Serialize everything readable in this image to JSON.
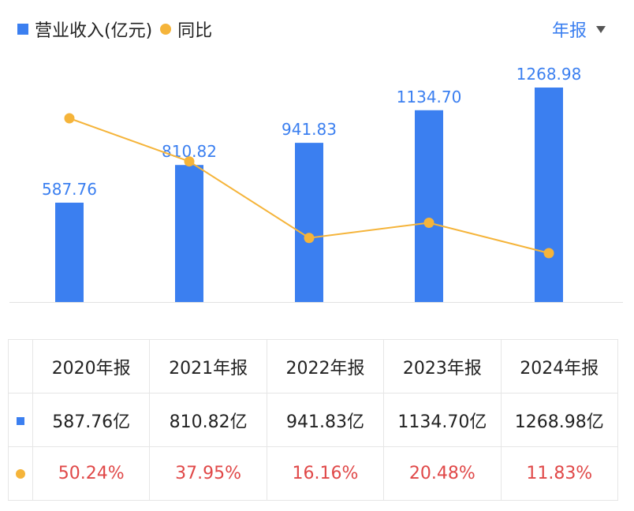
{
  "legend": {
    "revenue_label": "营业收入(亿元)",
    "yoy_label": "同比"
  },
  "period_selector": {
    "label": "年报"
  },
  "colors": {
    "bar": "#3b7ff0",
    "line": "#f5b43a",
    "label": "#3b7ff0",
    "yoy_text": "#e04848"
  },
  "chart_data": {
    "type": "bar",
    "categories": [
      "2020年报",
      "2021年报",
      "2022年报",
      "2023年报",
      "2024年报"
    ],
    "series": [
      {
        "name": "营业收入(亿元)",
        "type": "bar",
        "values": [
          587.76,
          810.82,
          941.83,
          1134.7,
          1268.98
        ],
        "data_labels": [
          "587.76",
          "810.82",
          "941.83",
          "1134.70",
          "1268.98"
        ]
      },
      {
        "name": "同比",
        "type": "line",
        "values": [
          50.24,
          37.95,
          16.16,
          20.48,
          11.83
        ]
      }
    ]
  },
  "table": {
    "header": [
      "2020年报",
      "2021年报",
      "2022年报",
      "2023年报",
      "2024年报"
    ],
    "revenue": [
      "587.76亿",
      "810.82亿",
      "941.83亿",
      "1134.70亿",
      "1268.98亿"
    ],
    "yoy": [
      "50.24%",
      "37.95%",
      "16.16%",
      "20.48%",
      "11.83%"
    ]
  }
}
